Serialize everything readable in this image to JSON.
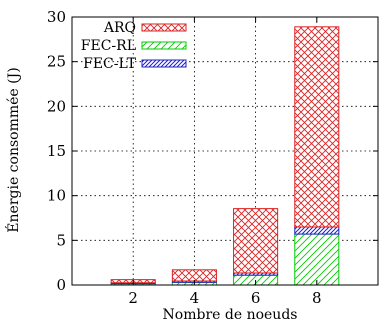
{
  "chart_data": {
    "type": "bar",
    "stacked": true,
    "title": "",
    "xlabel": "Nombre de noeuds",
    "ylabel": "Énergie consommée (J)",
    "categories": [
      "2",
      "4",
      "6",
      "8"
    ],
    "ylim": [
      0,
      30
    ],
    "yticks": [
      "0",
      "5",
      "10",
      "15",
      "20",
      "25",
      "30"
    ],
    "grid": true,
    "legend_position": "top-left",
    "series": [
      {
        "name": "FEC-RL",
        "color": "#00cc00",
        "pattern": "diagonal-hatch",
        "values": [
          0.15,
          0.3,
          1.1,
          5.7
        ]
      },
      {
        "name": "FEC-LT",
        "color": "#2020cc",
        "pattern": "diagonal-hatch",
        "values": [
          0.1,
          0.15,
          0.25,
          0.8
        ]
      },
      {
        "name": "ARQ",
        "color": "#dd2222",
        "pattern": "crosshatch",
        "values": [
          0.35,
          1.25,
          7.2,
          22.4
        ]
      }
    ],
    "legend_order": [
      "ARQ",
      "FEC-RL",
      "FEC-LT"
    ]
  }
}
